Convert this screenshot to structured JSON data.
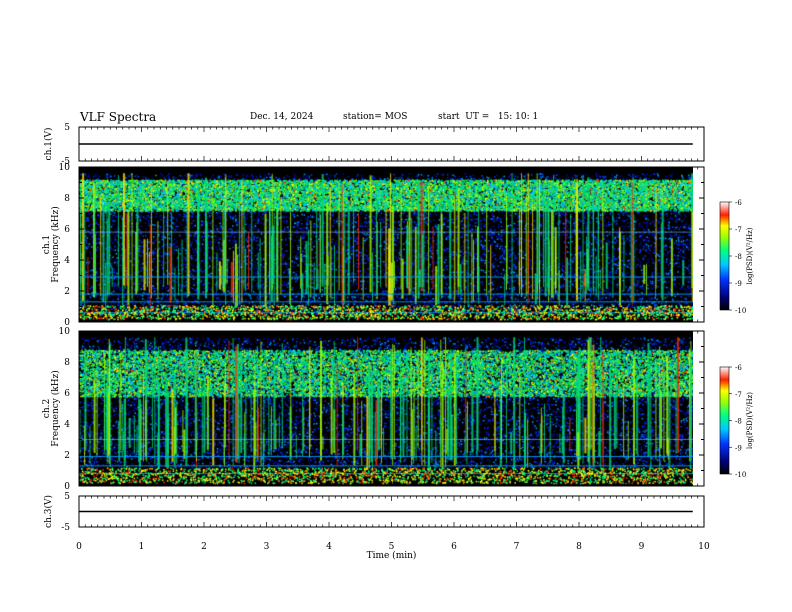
{
  "header": {
    "title": "VLF Spectra",
    "date": "Dec. 14, 2024",
    "station": "station= MOS",
    "start_ut": "start  UT =   15: 10: 1"
  },
  "chart_data": [
    {
      "type": "line",
      "name": "ch1-voltage",
      "ylabel": "ch.1(V)",
      "yticks": [
        "5",
        "-5"
      ],
      "ylim": [
        -5,
        5
      ],
      "level": 0
    },
    {
      "type": "heatmap",
      "name": "ch1-spectrogram",
      "ylabel_top": "ch.1",
      "ylabel": "Frequency (kHz)",
      "yticks": [
        "0",
        "2",
        "4",
        "6",
        "8",
        "10"
      ],
      "ylim": [
        0,
        10
      ],
      "colorbar": {
        "label": "log(PSD)(V²/Hz)",
        "ticks": [
          "-6",
          "-7",
          "-8",
          "-9",
          "-10"
        ],
        "range": [
          -10,
          -6
        ]
      }
    },
    {
      "type": "heatmap",
      "name": "ch2-spectrogram",
      "ylabel_top": "ch.2",
      "ylabel": "Frequency (kHz)",
      "yticks": [
        "0",
        "2",
        "4",
        "6",
        "8",
        "10"
      ],
      "ylim": [
        0,
        10
      ],
      "colorbar": {
        "label": "log(PSD)(V²/Hz)",
        "ticks": [
          "-6",
          "-7",
          "-8",
          "-9",
          "-10"
        ],
        "range": [
          -10,
          -6
        ]
      }
    },
    {
      "type": "line",
      "name": "ch3-voltage",
      "ylabel": "ch.3(V)",
      "yticks": [
        "5",
        "-5"
      ],
      "ylim": [
        -5,
        5
      ],
      "level": 0
    }
  ],
  "xaxis": {
    "label": "Time  (min)",
    "ticks": [
      "0",
      "1",
      "2",
      "3",
      "4",
      "5",
      "6",
      "7",
      "8",
      "9",
      "10"
    ],
    "xlim": [
      0,
      10
    ],
    "data_end": 9.82
  }
}
